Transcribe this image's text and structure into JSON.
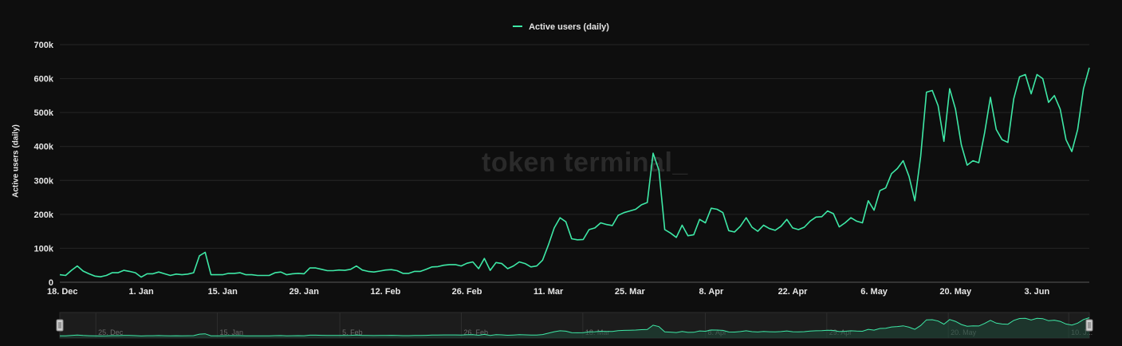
{
  "watermark": "token terminal_",
  "chart_data": {
    "type": "line",
    "title": "",
    "ylabel": "Active users (daily)",
    "xlabel": "",
    "ylim": [
      0,
      700000
    ],
    "y_ticks": [
      "0",
      "100k",
      "200k",
      "300k",
      "400k",
      "500k",
      "600k",
      "700k"
    ],
    "x_ticks": [
      "18. Dec",
      "1. Jan",
      "15. Jan",
      "29. Jan",
      "12. Feb",
      "26. Feb",
      "11. Mar",
      "25. Mar",
      "8. Apr",
      "22. Apr",
      "6. May",
      "20. May",
      "3. Jun"
    ],
    "navigator_ticks": [
      "25. Dec",
      "15. Jan",
      "5. Feb",
      "26. Feb",
      "18. Mar",
      "8. Apr",
      "29. Apr",
      "20. May",
      "10. J..."
    ],
    "legend": {
      "position": "top-center",
      "entries": [
        "Active users (daily)"
      ]
    },
    "grid": true,
    "series": [
      {
        "name": "Active users (daily)",
        "color": "#3ee8a6",
        "values": [
          22000,
          20000,
          35000,
          48000,
          33000,
          25000,
          18000,
          16000,
          20000,
          28000,
          28000,
          35000,
          32000,
          28000,
          15000,
          25000,
          25000,
          30000,
          25000,
          20000,
          24000,
          22000,
          24000,
          28000,
          78000,
          88000,
          22000,
          22000,
          22000,
          26000,
          26000,
          28000,
          22000,
          22000,
          20000,
          20000,
          20000,
          28000,
          30000,
          22000,
          25000,
          26000,
          25000,
          42000,
          42000,
          38000,
          34000,
          34000,
          36000,
          35000,
          38000,
          48000,
          36000,
          32000,
          30000,
          33000,
          36000,
          37000,
          34000,
          26000,
          26000,
          32000,
          32000,
          38000,
          45000,
          46000,
          50000,
          52000,
          52000,
          48000,
          56000,
          60000,
          40000,
          70000,
          35000,
          58000,
          55000,
          40000,
          48000,
          60000,
          55000,
          45000,
          48000,
          65000,
          110000,
          160000,
          190000,
          178000,
          128000,
          125000,
          126000,
          155000,
          160000,
          175000,
          170000,
          167000,
          197000,
          205000,
          210000,
          215000,
          228000,
          235000,
          380000,
          330000,
          155000,
          145000,
          132000,
          168000,
          137000,
          140000,
          185000,
          175000,
          218000,
          215000,
          205000,
          152000,
          148000,
          165000,
          190000,
          162000,
          150000,
          168000,
          158000,
          153000,
          165000,
          185000,
          160000,
          155000,
          162000,
          180000,
          192000,
          193000,
          210000,
          202000,
          163000,
          175000,
          190000,
          180000,
          175000,
          240000,
          212000,
          270000,
          278000,
          320000,
          335000,
          358000,
          312000,
          240000,
          370000,
          560000,
          565000,
          520000,
          415000,
          570000,
          510000,
          405000,
          345000,
          358000,
          352000,
          440000,
          545000,
          450000,
          420000,
          412000,
          540000,
          605000,
          612000,
          555000,
          612000,
          600000,
          530000,
          550000,
          510000,
          420000,
          385000,
          450000,
          570000,
          632000
        ]
      }
    ]
  }
}
